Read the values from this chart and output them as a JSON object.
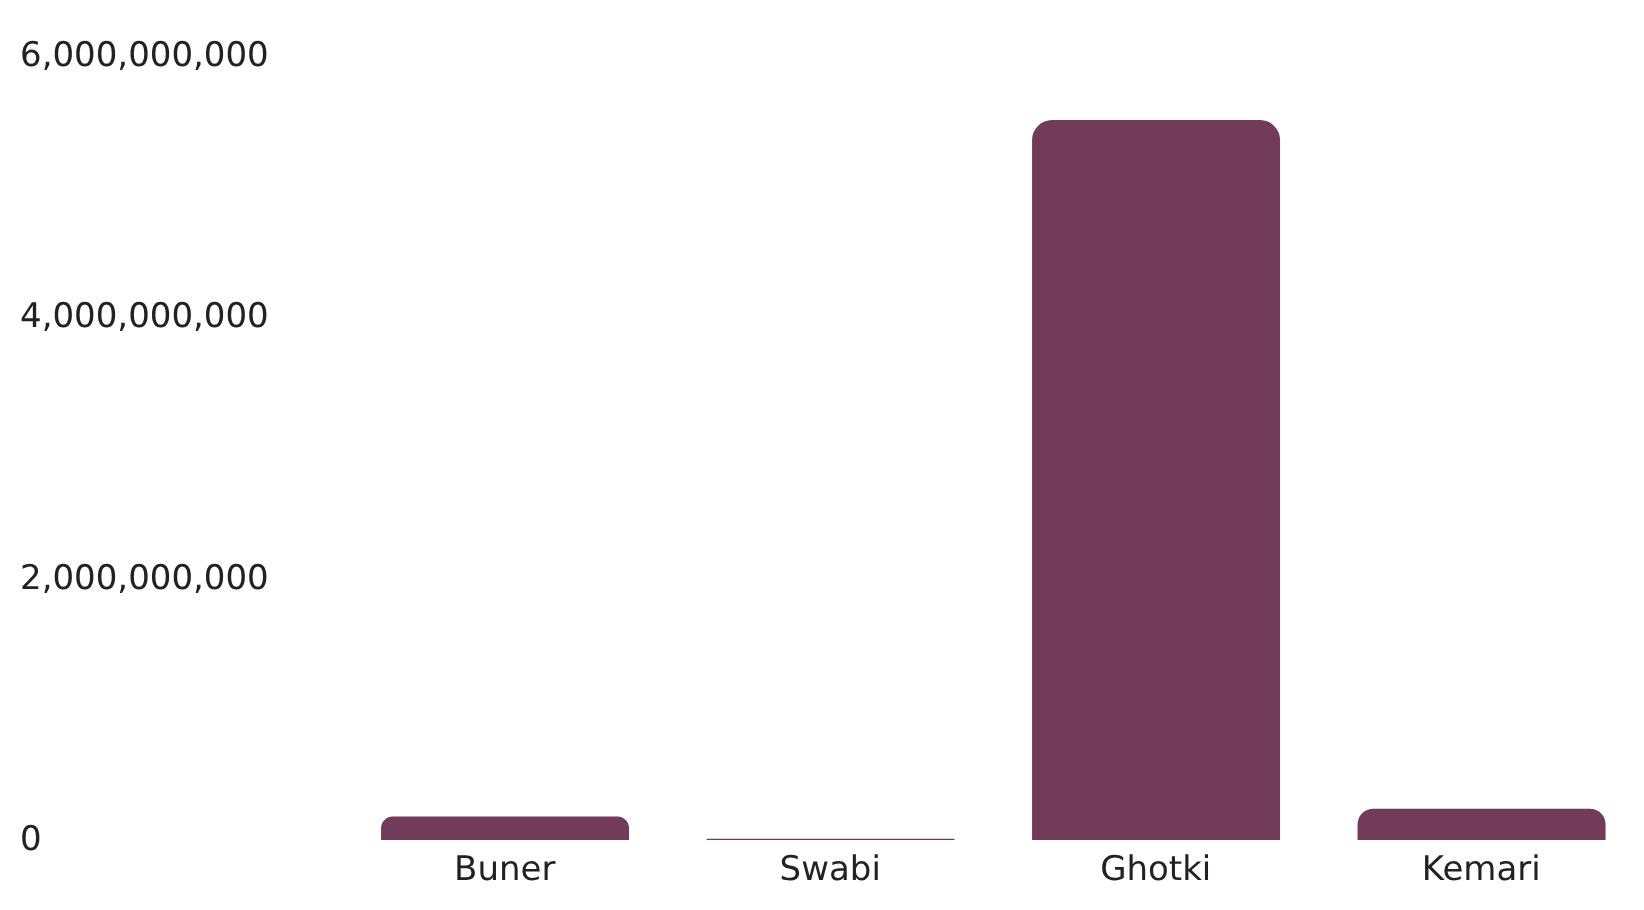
{
  "chart_data": {
    "type": "bar",
    "categories": [
      "Buner",
      "Swabi",
      "Ghotki",
      "Kemari"
    ],
    "values": [
      180000000,
      10000000,
      5510000000,
      240000000
    ],
    "color": "#733b5a",
    "ylim": [
      0,
      6000000000
    ],
    "yticks": [
      0,
      {
        "value": 2000000000,
        "label": "2,000,000,000"
      },
      {
        "value": 4000000000,
        "label": "4,000,000,000"
      },
      {
        "value": 6000000000,
        "label": "6,000,000,000"
      }
    ],
    "grid": false,
    "legend": false
  }
}
